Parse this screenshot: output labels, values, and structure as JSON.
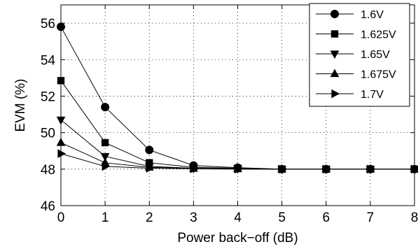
{
  "chart_data": {
    "type": "line",
    "title": "",
    "xlabel": "Power back−off (dB)",
    "ylabel": "EVM (%)",
    "xlim": [
      0,
      8
    ],
    "ylim": [
      46,
      57
    ],
    "xticks": [
      0,
      1,
      2,
      3,
      4,
      5,
      6,
      7,
      8
    ],
    "yticks": [
      46,
      48,
      50,
      52,
      54,
      56
    ],
    "grid": true,
    "legend_position": "top-right",
    "x": [
      0,
      1,
      2,
      3,
      4,
      5,
      6,
      7,
      8
    ],
    "series": [
      {
        "name": "1.6V",
        "marker": "circle",
        "values": [
          55.8,
          51.4,
          49.05,
          48.2,
          48.08,
          48.0,
          48.0,
          48.0,
          48.0
        ]
      },
      {
        "name": "1.625V",
        "marker": "square",
        "values": [
          52.85,
          49.45,
          48.35,
          48.1,
          48.05,
          48.0,
          48.0,
          48.0,
          48.0
        ]
      },
      {
        "name": "1.65V",
        "marker": "triangle-down",
        "values": [
          50.7,
          48.7,
          48.15,
          48.05,
          48.02,
          48.0,
          48.0,
          48.0,
          48.0
        ]
      },
      {
        "name": "1.675V",
        "marker": "triangle-up",
        "values": [
          49.45,
          48.35,
          48.1,
          48.03,
          48.01,
          48.0,
          48.0,
          48.0,
          48.0
        ]
      },
      {
        "name": "1.7V",
        "marker": "triangle-right",
        "values": [
          48.85,
          48.15,
          48.05,
          48.02,
          48.0,
          48.0,
          48.0,
          48.0,
          48.0
        ]
      }
    ]
  }
}
